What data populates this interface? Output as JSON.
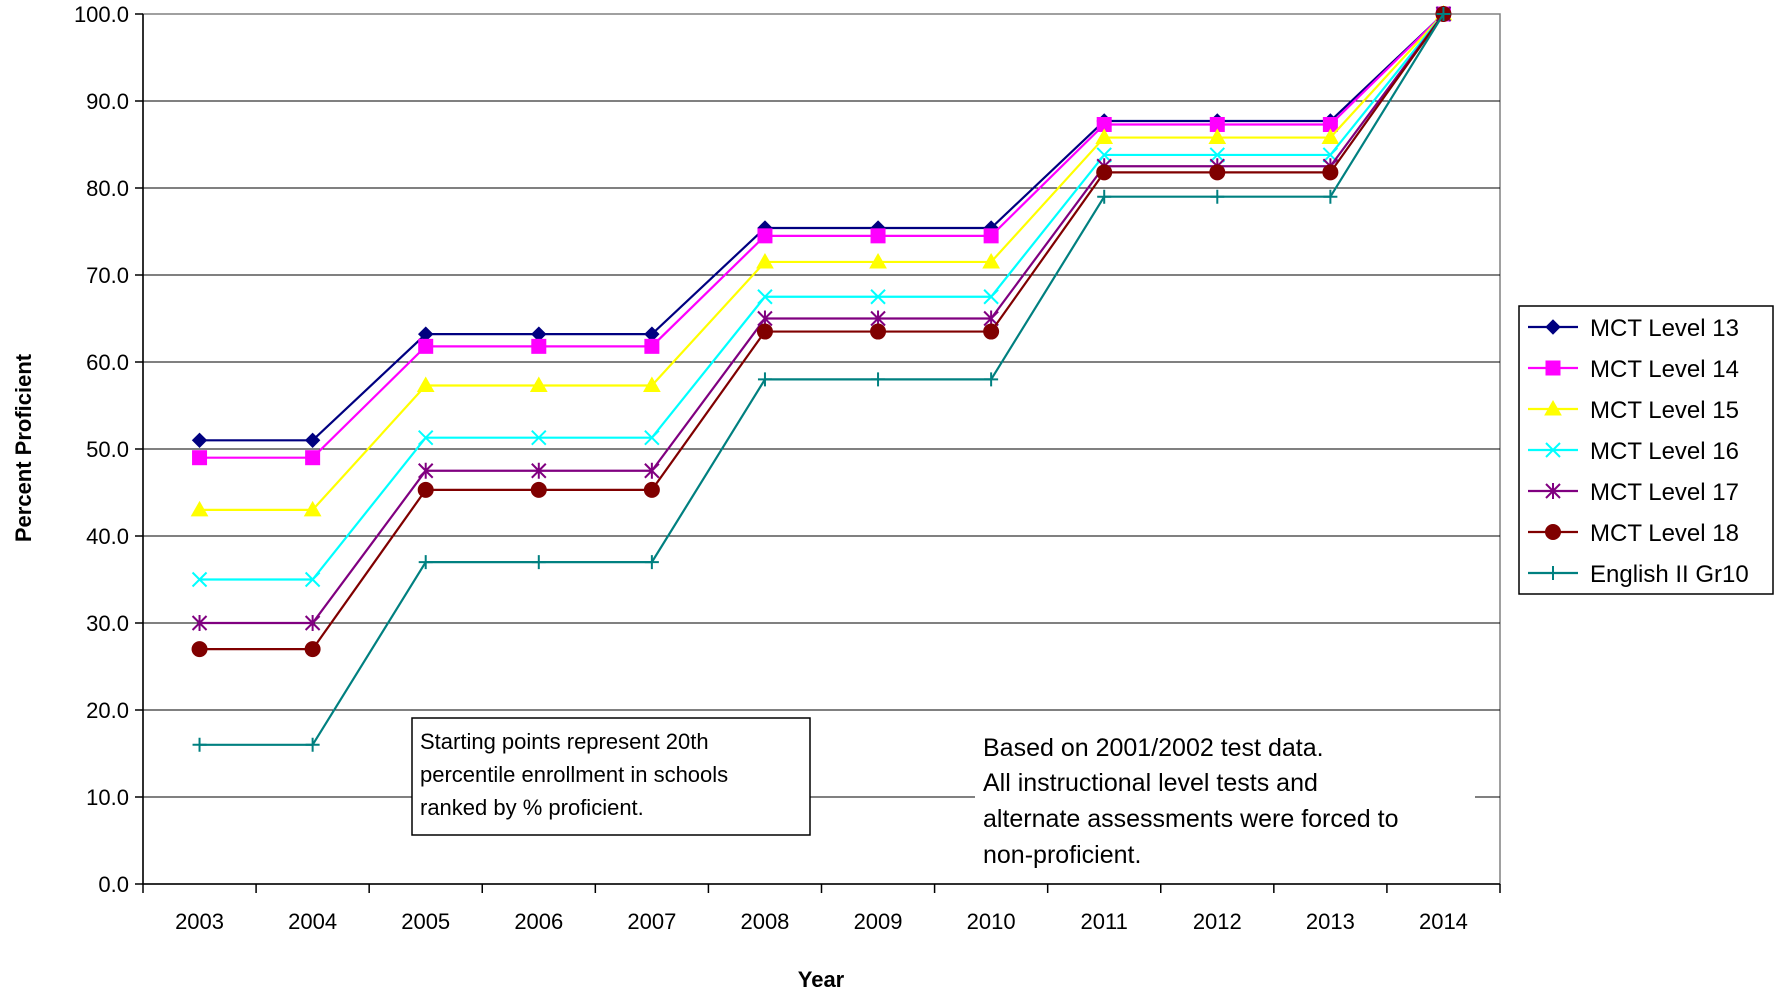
{
  "chart_data": {
    "type": "line",
    "title": "",
    "xlabel": "Year",
    "ylabel": "Percent Proficient",
    "categories": [
      "2003",
      "2004",
      "2005",
      "2006",
      "2007",
      "2008",
      "2009",
      "2010",
      "2011",
      "2012",
      "2013",
      "2014"
    ],
    "ylim": [
      0,
      100
    ],
    "yticks": [
      "0.0",
      "10.0",
      "20.0",
      "30.0",
      "40.0",
      "50.0",
      "60.0",
      "70.0",
      "80.0",
      "90.0",
      "100.0"
    ],
    "grid": true,
    "legend_position": "right",
    "series": [
      {
        "name": "MCT Level 13",
        "color": "#000080",
        "marker": "diamond",
        "values": [
          51.0,
          51.0,
          63.2,
          63.2,
          63.2,
          75.4,
          75.4,
          75.4,
          87.7,
          87.7,
          87.7,
          100.0
        ]
      },
      {
        "name": "MCT Level 14",
        "color": "#ff00ff",
        "marker": "square",
        "values": [
          49.0,
          49.0,
          61.8,
          61.8,
          61.8,
          74.5,
          74.5,
          74.5,
          87.3,
          87.3,
          87.3,
          100.0
        ]
      },
      {
        "name": "MCT Level 15",
        "color": "#ffff00",
        "marker": "triangle",
        "values": [
          43.0,
          43.0,
          57.3,
          57.3,
          57.3,
          71.5,
          71.5,
          71.5,
          85.8,
          85.8,
          85.8,
          100.0
        ]
      },
      {
        "name": "MCT Level 16",
        "color": "#00ffff",
        "marker": "x",
        "values": [
          35.0,
          35.0,
          51.3,
          51.3,
          51.3,
          67.5,
          67.5,
          67.5,
          83.8,
          83.8,
          83.8,
          100.0
        ]
      },
      {
        "name": "MCT Level 17",
        "color": "#800080",
        "marker": "asterisk",
        "values": [
          30.0,
          30.0,
          47.5,
          47.5,
          47.5,
          65.0,
          65.0,
          65.0,
          82.5,
          82.5,
          82.5,
          100.0
        ]
      },
      {
        "name": "MCT Level 18",
        "color": "#800000",
        "marker": "circle",
        "values": [
          27.0,
          27.0,
          45.3,
          45.3,
          45.3,
          63.5,
          63.5,
          63.5,
          81.8,
          81.8,
          81.8,
          100.0
        ]
      },
      {
        "name": "English II Gr10",
        "color": "#008080",
        "marker": "plus",
        "values": [
          16.0,
          16.0,
          37.0,
          37.0,
          37.0,
          58.0,
          58.0,
          58.0,
          79.0,
          79.0,
          79.0,
          100.0
        ]
      }
    ],
    "annotations": [
      {
        "lines": [
          "Starting points represent 20th",
          "percentile enrollment in schools",
          "ranked by % proficient."
        ],
        "boxed": true
      },
      {
        "lines": [
          "Based on 2001/2002 test data.",
          "All instructional level tests and",
          "alternate assessments were forced to",
          "non-proficient."
        ],
        "boxed": false
      }
    ]
  }
}
